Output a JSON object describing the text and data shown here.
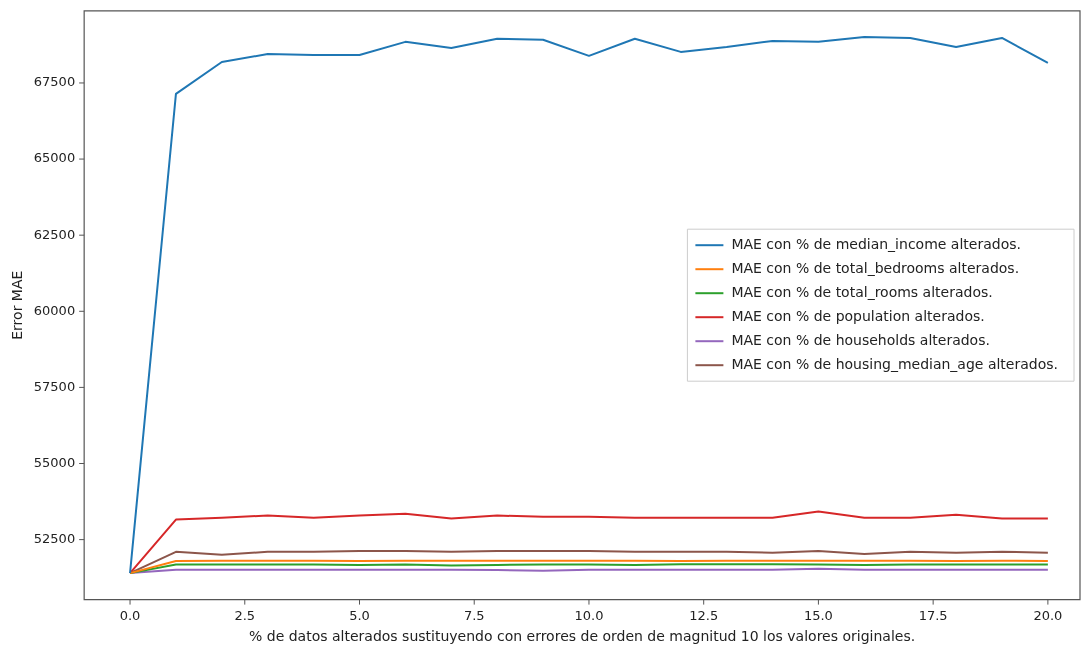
{
  "chart_data": {
    "type": "line",
    "xlabel": "% de datos alterados sustituyendo con errores de orden de magnitud 10 los valores originales.",
    "ylabel": "Error MAE",
    "x": [
      0,
      1,
      2,
      3,
      4,
      5,
      6,
      7,
      8,
      9,
      10,
      11,
      12,
      13,
      14,
      15,
      16,
      17,
      18,
      19,
      20
    ],
    "xlim": [
      -1,
      20.7
    ],
    "xticks": [
      {
        "value": 0,
        "label": "0.0"
      },
      {
        "value": 2.5,
        "label": "2.5"
      },
      {
        "value": 5,
        "label": "5.0"
      },
      {
        "value": 7.5,
        "label": "7.5"
      },
      {
        "value": 10,
        "label": "10.0"
      },
      {
        "value": 12.5,
        "label": "12.5"
      },
      {
        "value": 15,
        "label": "15.0"
      },
      {
        "value": 17.5,
        "label": "17.5"
      },
      {
        "value": 20,
        "label": "20.0"
      }
    ],
    "ylim": [
      50530,
      69870
    ],
    "yticks": [
      52500,
      55000,
      57500,
      60000,
      62500,
      65000,
      67500
    ],
    "grid": false,
    "legend": "right",
    "marker": "none",
    "line_style": "solid",
    "series": [
      {
        "name": "MAE con % de median_income alterados.",
        "color": "#1f77b4",
        "values": [
          51400,
          67140,
          68190,
          68450,
          68420,
          68420,
          68850,
          68650,
          68950,
          68920,
          68390,
          68950,
          68520,
          68680,
          68880,
          68850,
          69010,
          68980,
          68680,
          68980,
          68160
        ]
      },
      {
        "name": "MAE con % de total_bedrooms alterados.",
        "color": "#ff7f0e",
        "values": [
          51400,
          51800,
          51810,
          51810,
          51810,
          51800,
          51810,
          51810,
          51810,
          51810,
          51810,
          51810,
          51800,
          51810,
          51810,
          51810,
          51810,
          51810,
          51800,
          51810,
          51800
        ]
      },
      {
        "name": "MAE con % de total_rooms alterados.",
        "color": "#2ca02c",
        "values": [
          51400,
          51680,
          51680,
          51680,
          51680,
          51670,
          51680,
          51650,
          51670,
          51680,
          51680,
          51670,
          51690,
          51690,
          51690,
          51680,
          51670,
          51680,
          51680,
          51680,
          51680
        ]
      },
      {
        "name": "MAE con % de population alterados.",
        "color": "#d62728",
        "values": [
          51400,
          53160,
          53220,
          53290,
          53220,
          53290,
          53350,
          53190,
          53290,
          53250,
          53250,
          53220,
          53220,
          53220,
          53220,
          53420,
          53220,
          53220,
          53320,
          53190,
          53190
        ]
      },
      {
        "name": "MAE con % de households alterados.",
        "color": "#9467bd",
        "values": [
          51400,
          51510,
          51510,
          51510,
          51510,
          51510,
          51510,
          51510,
          51500,
          51480,
          51510,
          51510,
          51510,
          51510,
          51510,
          51540,
          51510,
          51510,
          51510,
          51510,
          51510
        ]
      },
      {
        "name": "MAE con % de housing_median_age alterados.",
        "color": "#8c564b",
        "values": [
          51400,
          52100,
          52000,
          52100,
          52100,
          52130,
          52130,
          52100,
          52130,
          52130,
          52130,
          52100,
          52100,
          52100,
          52070,
          52130,
          52030,
          52100,
          52070,
          52100,
          52070
        ]
      }
    ]
  }
}
